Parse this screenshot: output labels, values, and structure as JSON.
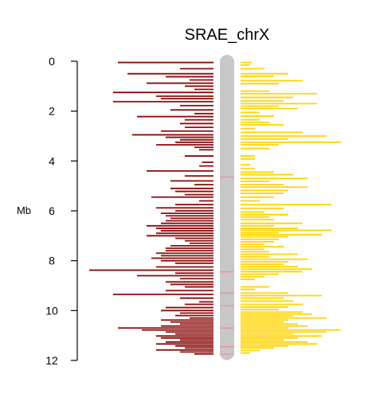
{
  "chart_data": {
    "type": "bar",
    "title": "SRAE_chrX",
    "ylabel": "Mb",
    "ylim": [
      0,
      12
    ],
    "y_ticks": [
      0,
      2,
      4,
      6,
      8,
      10,
      12
    ],
    "chromosome_length": 11.8,
    "colors": {
      "left": "#8B0A0A",
      "right": "#FFD400",
      "chromosome": "#C8C8C8",
      "band": "#F08C8C"
    },
    "chromosome_bands": [
      4.65,
      8.45,
      9.3,
      9.8,
      10.7,
      11.45,
      11.75
    ],
    "series": [
      {
        "side": "left",
        "bars": [
          {
            "y": 0.05,
            "value": 1.0
          },
          {
            "y": 0.3,
            "value": 0.35
          },
          {
            "y": 0.5,
            "value": 0.9
          },
          {
            "y": 0.62,
            "value": 0.5
          },
          {
            "y": 0.75,
            "value": 0.25
          },
          {
            "y": 0.88,
            "value": 0.7
          },
          {
            "y": 1.0,
            "value": 0.3
          },
          {
            "y": 1.13,
            "value": 0.2
          },
          {
            "y": 1.25,
            "value": 1.05
          },
          {
            "y": 1.4,
            "value": 0.6
          },
          {
            "y": 1.5,
            "value": 0.55
          },
          {
            "y": 1.62,
            "value": 1.05
          },
          {
            "y": 1.78,
            "value": 0.35
          },
          {
            "y": 1.95,
            "value": 0.45
          },
          {
            "y": 2.1,
            "value": 0.2
          },
          {
            "y": 2.22,
            "value": 0.8
          },
          {
            "y": 2.35,
            "value": 0.3
          },
          {
            "y": 2.5,
            "value": 0.35
          },
          {
            "y": 2.65,
            "value": 0.3
          },
          {
            "y": 2.8,
            "value": 0.55
          },
          {
            "y": 2.95,
            "value": 0.85
          },
          {
            "y": 3.05,
            "value": 0.5
          },
          {
            "y": 3.15,
            "value": 0.35
          },
          {
            "y": 3.25,
            "value": 0.4
          },
          {
            "y": 3.35,
            "value": 0.6
          },
          {
            "y": 3.45,
            "value": 0.2
          },
          {
            "y": 3.55,
            "value": 0.15
          },
          {
            "y": 3.8,
            "value": 0.3
          },
          {
            "y": 4.05,
            "value": 0.12
          },
          {
            "y": 4.2,
            "value": 0.15
          },
          {
            "y": 4.4,
            "value": 0.7
          },
          {
            "y": 4.6,
            "value": 0.3
          },
          {
            "y": 4.8,
            "value": 0.45
          },
          {
            "y": 4.95,
            "value": 0.2
          },
          {
            "y": 5.1,
            "value": 0.45
          },
          {
            "y": 5.22,
            "value": 0.4
          },
          {
            "y": 5.35,
            "value": 0.3
          },
          {
            "y": 5.45,
            "value": 0.65
          },
          {
            "y": 5.6,
            "value": 0.15
          },
          {
            "y": 5.75,
            "value": 0.4
          },
          {
            "y": 5.88,
            "value": 0.6
          },
          {
            "y": 6.0,
            "value": 0.4
          },
          {
            "y": 6.1,
            "value": 0.55
          },
          {
            "y": 6.2,
            "value": 0.5
          },
          {
            "y": 6.3,
            "value": 0.45
          },
          {
            "y": 6.4,
            "value": 0.5
          },
          {
            "y": 6.5,
            "value": 0.55
          },
          {
            "y": 6.6,
            "value": 0.7
          },
          {
            "y": 6.7,
            "value": 0.6
          },
          {
            "y": 6.8,
            "value": 0.55
          },
          {
            "y": 6.9,
            "value": 0.6
          },
          {
            "y": 7.0,
            "value": 0.7
          },
          {
            "y": 7.1,
            "value": 0.4
          },
          {
            "y": 7.2,
            "value": 0.3
          },
          {
            "y": 7.3,
            "value": 0.25
          },
          {
            "y": 7.4,
            "value": 0.45
          },
          {
            "y": 7.5,
            "value": 0.5
          },
          {
            "y": 7.6,
            "value": 0.5
          },
          {
            "y": 7.7,
            "value": 0.6
          },
          {
            "y": 7.8,
            "value": 0.55
          },
          {
            "y": 7.9,
            "value": 0.65
          },
          {
            "y": 8.0,
            "value": 0.55
          },
          {
            "y": 8.1,
            "value": 0.4
          },
          {
            "y": 8.25,
            "value": 0.6
          },
          {
            "y": 8.38,
            "value": 1.3
          },
          {
            "y": 8.5,
            "value": 0.4
          },
          {
            "y": 8.6,
            "value": 0.8
          },
          {
            "y": 8.72,
            "value": 0.35
          },
          {
            "y": 8.85,
            "value": 0.5
          },
          {
            "y": 8.95,
            "value": 0.45
          },
          {
            "y": 9.05,
            "value": 0.3
          },
          {
            "y": 9.2,
            "value": 0.5
          },
          {
            "y": 9.35,
            "value": 1.05
          },
          {
            "y": 9.5,
            "value": 0.35
          },
          {
            "y": 9.65,
            "value": 0.15
          },
          {
            "y": 9.75,
            "value": 0.3
          },
          {
            "y": 9.88,
            "value": 0.5
          },
          {
            "y": 10.0,
            "value": 0.55
          },
          {
            "y": 10.1,
            "value": 0.35
          },
          {
            "y": 10.2,
            "value": 0.4
          },
          {
            "y": 10.3,
            "value": 0.25
          },
          {
            "y": 10.38,
            "value": 0.55
          },
          {
            "y": 10.46,
            "value": 0.45
          },
          {
            "y": 10.54,
            "value": 0.35
          },
          {
            "y": 10.62,
            "value": 0.55
          },
          {
            "y": 10.7,
            "value": 1.0
          },
          {
            "y": 10.78,
            "value": 0.75
          },
          {
            "y": 10.86,
            "value": 0.5
          },
          {
            "y": 10.94,
            "value": 0.4
          },
          {
            "y": 11.02,
            "value": 0.6
          },
          {
            "y": 11.1,
            "value": 0.55
          },
          {
            "y": 11.18,
            "value": 0.35
          },
          {
            "y": 11.26,
            "value": 0.5
          },
          {
            "y": 11.34,
            "value": 0.6
          },
          {
            "y": 11.42,
            "value": 0.4
          },
          {
            "y": 11.5,
            "value": 0.3
          },
          {
            "y": 11.58,
            "value": 0.6
          },
          {
            "y": 11.66,
            "value": 0.35
          },
          {
            "y": 11.74,
            "value": 0.2
          }
        ]
      },
      {
        "side": "right",
        "bars": [
          {
            "y": 0.05,
            "value": 0.12
          },
          {
            "y": 0.15,
            "value": 0.1
          },
          {
            "y": 0.3,
            "value": 0.25
          },
          {
            "y": 0.5,
            "value": 0.5
          },
          {
            "y": 0.6,
            "value": 0.35
          },
          {
            "y": 0.78,
            "value": 0.65
          },
          {
            "y": 0.9,
            "value": 0.4
          },
          {
            "y": 1.2,
            "value": 0.3
          },
          {
            "y": 1.3,
            "value": 0.8
          },
          {
            "y": 1.45,
            "value": 0.55
          },
          {
            "y": 1.6,
            "value": 0.45
          },
          {
            "y": 1.7,
            "value": 0.8
          },
          {
            "y": 1.8,
            "value": 0.4
          },
          {
            "y": 1.9,
            "value": 0.6
          },
          {
            "y": 2.05,
            "value": 0.2
          },
          {
            "y": 2.2,
            "value": 0.35
          },
          {
            "y": 2.35,
            "value": 0.2
          },
          {
            "y": 2.45,
            "value": 0.3
          },
          {
            "y": 2.55,
            "value": 0.45
          },
          {
            "y": 2.7,
            "value": 0.15
          },
          {
            "y": 2.85,
            "value": 0.65
          },
          {
            "y": 3.0,
            "value": 0.9
          },
          {
            "y": 3.12,
            "value": 0.5
          },
          {
            "y": 3.25,
            "value": 1.05
          },
          {
            "y": 3.35,
            "value": 0.4
          },
          {
            "y": 3.5,
            "value": 0.3
          },
          {
            "y": 3.8,
            "value": 0.15
          },
          {
            "y": 3.92,
            "value": 0.15
          },
          {
            "y": 4.15,
            "value": 0.1
          },
          {
            "y": 4.3,
            "value": 0.15
          },
          {
            "y": 4.45,
            "value": 0.35
          },
          {
            "y": 4.55,
            "value": 0.55
          },
          {
            "y": 4.7,
            "value": 0.7
          },
          {
            "y": 4.82,
            "value": 0.3
          },
          {
            "y": 4.95,
            "value": 0.45
          },
          {
            "y": 5.05,
            "value": 0.7
          },
          {
            "y": 5.18,
            "value": 0.5
          },
          {
            "y": 5.3,
            "value": 0.45
          },
          {
            "y": 5.45,
            "value": 0.35
          },
          {
            "y": 5.6,
            "value": 0.2
          },
          {
            "y": 5.75,
            "value": 0.95
          },
          {
            "y": 5.9,
            "value": 0.45
          },
          {
            "y": 6.05,
            "value": 0.25
          },
          {
            "y": 6.15,
            "value": 0.5
          },
          {
            "y": 6.25,
            "value": 0.3
          },
          {
            "y": 6.35,
            "value": 0.35
          },
          {
            "y": 6.5,
            "value": 0.65
          },
          {
            "y": 6.6,
            "value": 0.35
          },
          {
            "y": 6.7,
            "value": 0.6
          },
          {
            "y": 6.78,
            "value": 0.95
          },
          {
            "y": 6.88,
            "value": 0.4
          },
          {
            "y": 6.96,
            "value": 0.85
          },
          {
            "y": 7.04,
            "value": 0.5
          },
          {
            "y": 7.14,
            "value": 0.4
          },
          {
            "y": 7.24,
            "value": 0.35
          },
          {
            "y": 7.34,
            "value": 0.25
          },
          {
            "y": 7.44,
            "value": 0.45
          },
          {
            "y": 7.54,
            "value": 0.25
          },
          {
            "y": 7.64,
            "value": 0.3
          },
          {
            "y": 7.74,
            "value": 0.6
          },
          {
            "y": 7.84,
            "value": 0.3
          },
          {
            "y": 7.94,
            "value": 0.7
          },
          {
            "y": 8.04,
            "value": 0.5
          },
          {
            "y": 8.14,
            "value": 0.45
          },
          {
            "y": 8.24,
            "value": 0.6
          },
          {
            "y": 8.34,
            "value": 0.75
          },
          {
            "y": 8.44,
            "value": 0.65
          },
          {
            "y": 8.54,
            "value": 0.4
          },
          {
            "y": 8.64,
            "value": 0.25
          },
          {
            "y": 8.75,
            "value": 0.15
          },
          {
            "y": 9.05,
            "value": 0.3
          },
          {
            "y": 9.15,
            "value": 0.15
          },
          {
            "y": 9.3,
            "value": 0.5
          },
          {
            "y": 9.4,
            "value": 0.85
          },
          {
            "y": 9.5,
            "value": 0.45
          },
          {
            "y": 9.62,
            "value": 0.55
          },
          {
            "y": 9.75,
            "value": 0.65
          },
          {
            "y": 9.86,
            "value": 0.5
          },
          {
            "y": 9.96,
            "value": 0.4
          },
          {
            "y": 10.06,
            "value": 0.65
          },
          {
            "y": 10.14,
            "value": 0.75
          },
          {
            "y": 10.22,
            "value": 0.55
          },
          {
            "y": 10.3,
            "value": 0.9
          },
          {
            "y": 10.38,
            "value": 0.5
          },
          {
            "y": 10.46,
            "value": 0.45
          },
          {
            "y": 10.54,
            "value": 0.6
          },
          {
            "y": 10.62,
            "value": 0.7
          },
          {
            "y": 10.7,
            "value": 0.5
          },
          {
            "y": 10.78,
            "value": 1.05
          },
          {
            "y": 10.86,
            "value": 0.9
          },
          {
            "y": 10.94,
            "value": 0.55
          },
          {
            "y": 11.02,
            "value": 0.85
          },
          {
            "y": 11.1,
            "value": 0.6
          },
          {
            "y": 11.18,
            "value": 0.45
          },
          {
            "y": 11.26,
            "value": 0.7
          },
          {
            "y": 11.34,
            "value": 0.8
          },
          {
            "y": 11.42,
            "value": 0.5
          },
          {
            "y": 11.5,
            "value": 0.35
          },
          {
            "y": 11.6,
            "value": 0.2
          },
          {
            "y": 11.7,
            "value": 0.1
          }
        ]
      }
    ]
  }
}
